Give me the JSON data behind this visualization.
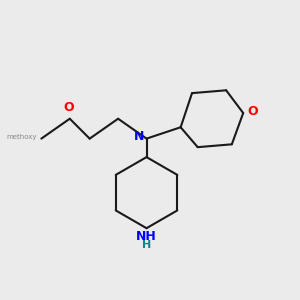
{
  "bg_color": "#ebebeb",
  "bond_color": "#1a1a1a",
  "N_color": "#0000ff",
  "O_color": "#ff0000",
  "NH_H_color": "#008b8b",
  "line_width": 1.5,
  "fig_size": [
    3.0,
    3.0
  ],
  "dpi": 100,
  "xlim": [
    0,
    10
  ],
  "ylim": [
    0,
    10
  ],
  "methoxy_label": "methoxy",
  "N_label": "N",
  "O_label": "O",
  "NH_label": "NH",
  "H_label": "H"
}
